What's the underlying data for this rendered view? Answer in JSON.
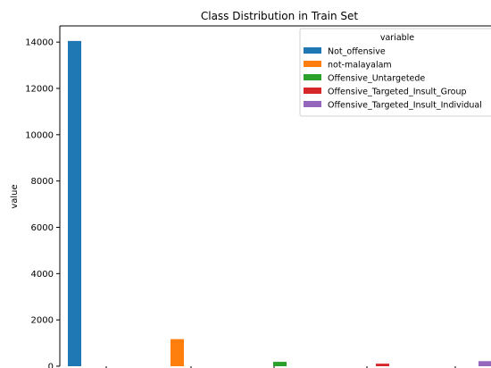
{
  "chart_data": {
    "type": "bar",
    "title": "Class Distribution in Train Set",
    "xlabel": "",
    "ylabel": "value",
    "ylim": [
      0,
      14700
    ],
    "yticks": [
      0,
      2000,
      4000,
      6000,
      8000,
      10000,
      12000,
      14000
    ],
    "grid": false,
    "legend": {
      "title": "variable",
      "placement": "top-right"
    },
    "series": [
      {
        "name": "Not_offensive",
        "color": "#1f77b4",
        "value": 14050
      },
      {
        "name": "not-malayalam",
        "color": "#ff7f0e",
        "value": 1170
      },
      {
        "name": "Offensive_Untargetede",
        "color": "#2ca02c",
        "value": 190
      },
      {
        "name": "Offensive_Targeted_Insult_Group",
        "color": "#d62728",
        "value": 110
      },
      {
        "name": "Offensive_Targeted_Insult_Individual",
        "color": "#9467bd",
        "value": 220
      }
    ]
  }
}
